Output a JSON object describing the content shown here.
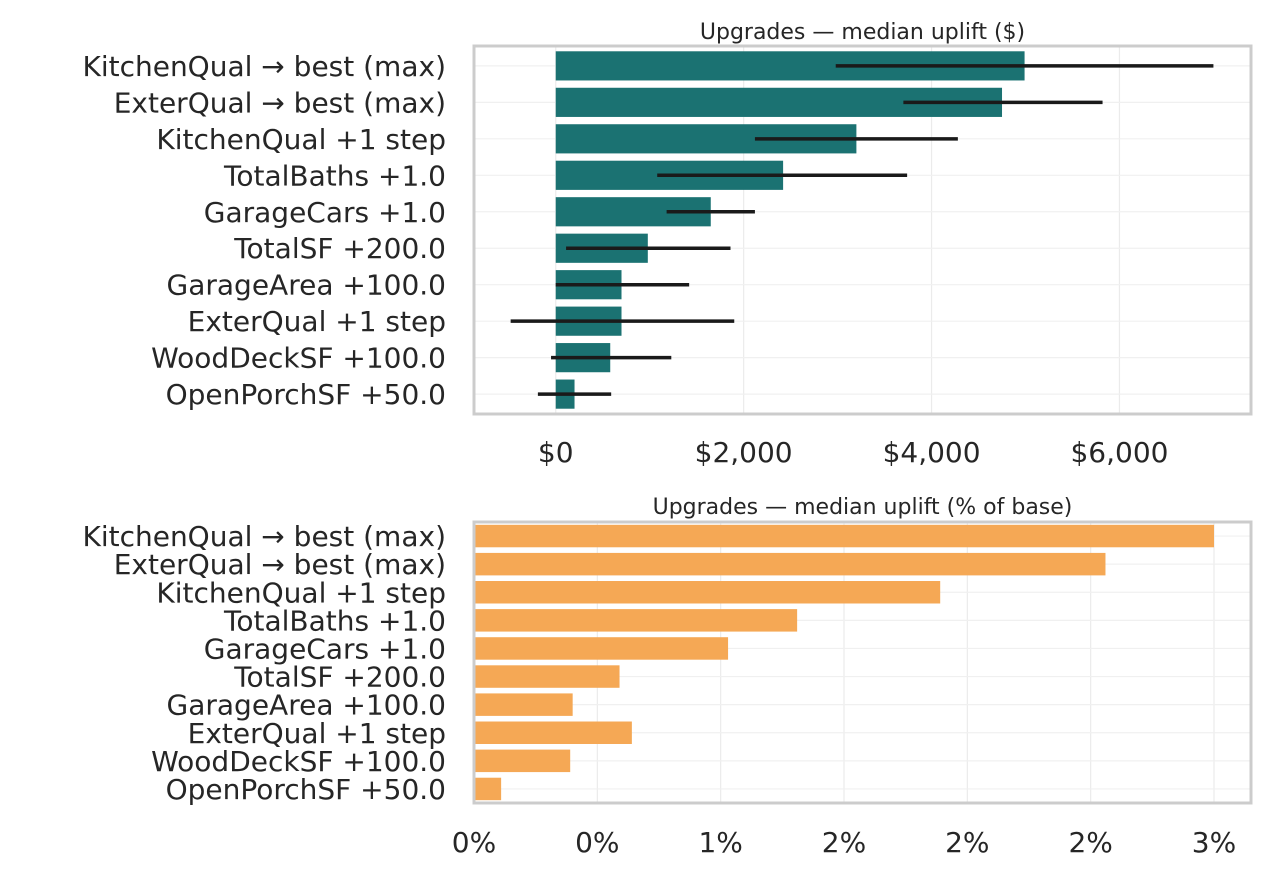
{
  "chart_data": [
    {
      "type": "bar",
      "orientation": "horizontal",
      "title": "Upgrades — median uplift ($)",
      "xlabel": "",
      "ylabel": "",
      "categories": [
        "KitchenQual → best (max)",
        "ExterQual → best (max)",
        "KitchenQual +1 step",
        "TotalBaths +1.0",
        "GarageCars +1.0",
        "TotalSF +200.0",
        "GarageArea +100.0",
        "ExterQual +1 step",
        "WoodDeckSF +100.0",
        "OpenPorchSF +50.0"
      ],
      "values": [
        4990,
        4750,
        3200,
        2420,
        1650,
        980,
        700,
        700,
        580,
        200
      ],
      "error_low": [
        2980,
        3700,
        2120,
        1080,
        1180,
        110,
        0,
        -480,
        -50,
        -190
      ],
      "error_high": [
        7000,
        5820,
        4280,
        3740,
        2120,
        1860,
        1420,
        1900,
        1230,
        590
      ],
      "xlim": [
        -870,
        7400
      ],
      "xticks": [
        0,
        2000,
        4000,
        6000
      ],
      "xtick_labels": [
        "$0",
        "$2,000",
        "$4,000",
        "$6,000"
      ],
      "grid": true,
      "color": "#1b7272",
      "error_color": "#1a1a1a"
    },
    {
      "type": "bar",
      "orientation": "horizontal",
      "title": "Upgrades — median uplift (% of base)",
      "xlabel": "",
      "ylabel": "",
      "categories": [
        "KitchenQual → best (max)",
        "ExterQual → best (max)",
        "KitchenQual +1 step",
        "TotalBaths +1.0",
        "GarageCars +1.0",
        "TotalSF +200.0",
        "GarageArea +100.0",
        "ExterQual +1 step",
        "WoodDeckSF +100.0",
        "OpenPorchSF +50.0"
      ],
      "values": [
        3.0,
        2.56,
        1.89,
        1.31,
        1.03,
        0.59,
        0.4,
        0.64,
        0.39,
        0.11
      ],
      "xlim": [
        0,
        3.15
      ],
      "xticks": [
        0,
        0.5,
        1.0,
        1.5,
        2.0,
        2.5,
        3.0
      ],
      "xtick_labels": [
        "0%",
        "0%",
        "1%",
        "2%",
        "2%",
        "2%",
        "3%"
      ],
      "grid": true,
      "color": "#f5a855"
    }
  ]
}
